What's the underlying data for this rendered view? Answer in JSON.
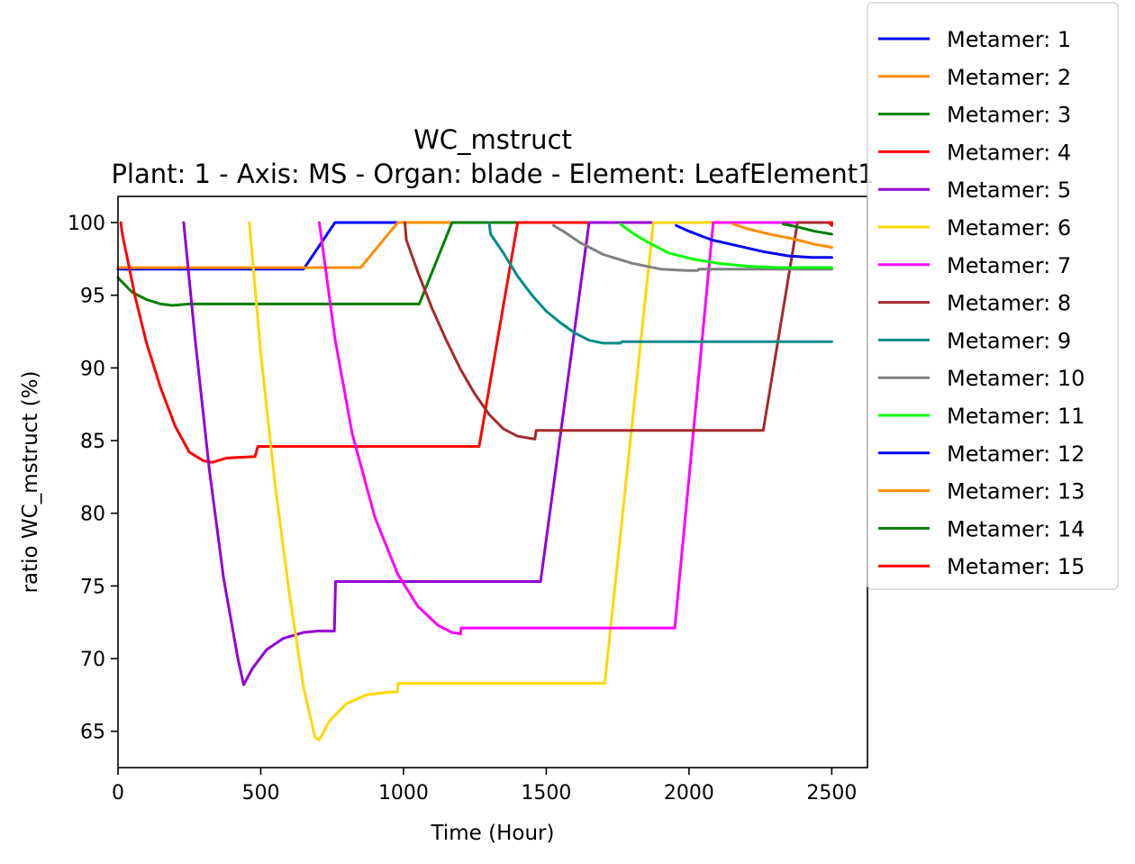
{
  "chart_data": {
    "type": "line",
    "title": "WC_mstruct",
    "subtitle": "Plant: 1 - Axis: MS - Organ: blade - Element: LeafElement1",
    "xlabel": "Time (Hour)",
    "ylabel": "ratio WC_mstruct (%)",
    "xlim": [
      0,
      2625
    ],
    "ylim": [
      62.5,
      101.8
    ],
    "xticks": [
      0,
      500,
      1000,
      1500,
      2000,
      2500
    ],
    "yticks": [
      65,
      70,
      75,
      80,
      85,
      90,
      95,
      100
    ],
    "grid": false,
    "legend_position": "outside-right",
    "series": [
      {
        "name": "Metamer: 1",
        "color": "#0000ff",
        "x": [
          0,
          650,
          760,
          2500
        ],
        "y": [
          96.8,
          96.8,
          100,
          100
        ]
      },
      {
        "name": "Metamer: 2",
        "color": "#ff8c00",
        "x": [
          0,
          850,
          980,
          2500
        ],
        "y": [
          96.9,
          96.9,
          100,
          100
        ]
      },
      {
        "name": "Metamer: 3",
        "color": "#008000",
        "x": [
          0,
          50,
          100,
          150,
          190,
          250,
          400,
          600,
          800,
          1000,
          1055,
          1170,
          2500
        ],
        "y": [
          96.2,
          95.2,
          94.7,
          94.4,
          94.3,
          94.4,
          94.4,
          94.4,
          94.4,
          94.4,
          94.4,
          100,
          100
        ]
      },
      {
        "name": "Metamer: 4",
        "color": "#ff0000",
        "x": [
          10,
          15,
          30,
          60,
          100,
          150,
          200,
          250,
          300,
          330,
          380,
          480,
          490,
          600,
          800,
          1000,
          1265,
          1400,
          2500
        ],
        "y": [
          100,
          99.2,
          97.8,
          94.9,
          91.7,
          88.6,
          86.0,
          84.2,
          83.6,
          83.5,
          83.8,
          83.9,
          84.6,
          84.6,
          84.6,
          84.6,
          84.6,
          100,
          100
        ]
      },
      {
        "name": "Metamer: 5",
        "color": "#9400d3",
        "x": [
          230,
          270,
          320,
          370,
          420,
          440,
          470,
          520,
          580,
          650,
          700,
          758,
          762,
          900,
          1100,
          1300,
          1480,
          1650,
          2500
        ],
        "y": [
          100,
          92,
          83,
          75.5,
          70.0,
          68.2,
          69.3,
          70.6,
          71.4,
          71.8,
          71.9,
          71.9,
          75.3,
          75.3,
          75.3,
          75.3,
          75.3,
          100,
          100
        ]
      },
      {
        "name": "Metamer: 6",
        "color": "#ffd700",
        "x": [
          460,
          500,
          550,
          600,
          650,
          690,
          705,
          740,
          800,
          870,
          950,
          978,
          982,
          1100,
          1300,
          1500,
          1705,
          1875,
          2500
        ],
        "y": [
          100,
          91,
          82,
          74.5,
          68.0,
          64.6,
          64.4,
          65.7,
          66.9,
          67.5,
          67.7,
          67.7,
          68.3,
          68.3,
          68.3,
          68.3,
          68.3,
          100,
          100
        ]
      },
      {
        "name": "Metamer: 7",
        "color": "#ff00ff",
        "x": [
          705,
          760,
          820,
          900,
          980,
          1050,
          1120,
          1170,
          1200,
          1202,
          1300,
          1500,
          1700,
          1950,
          2085,
          2500
        ],
        "y": [
          100,
          92,
          85.5,
          79.7,
          75.8,
          73.6,
          72.3,
          71.8,
          71.7,
          72.1,
          72.1,
          72.1,
          72.1,
          72.1,
          100,
          100
        ]
      },
      {
        "name": "Metamer: 8",
        "color": "#a52a2a",
        "x": [
          1005,
          1010,
          1050,
          1100,
          1150,
          1200,
          1250,
          1300,
          1350,
          1400,
          1460,
          1465,
          1600,
          1800,
          2000,
          2150,
          2260,
          2380,
          2500
        ],
        "y": [
          100,
          98.8,
          96.6,
          94.1,
          91.9,
          89.9,
          88.2,
          86.8,
          85.8,
          85.3,
          85.1,
          85.7,
          85.7,
          85.7,
          85.7,
          85.7,
          85.7,
          100,
          100
        ]
      },
      {
        "name": "Metamer: 9",
        "color": "#008b8b",
        "x": [
          1300,
          1305,
          1350,
          1400,
          1450,
          1500,
          1550,
          1600,
          1650,
          1700,
          1760,
          1765,
          1900,
          2100,
          2300,
          2500
        ],
        "y": [
          100,
          99.2,
          97.9,
          96.3,
          95.0,
          93.9,
          93.1,
          92.4,
          91.9,
          91.7,
          91.7,
          91.8,
          91.8,
          91.8,
          91.8,
          91.8
        ]
      },
      {
        "name": "Metamer: 10",
        "color": "#808080",
        "x": [
          1525,
          1560,
          1620,
          1700,
          1800,
          1900,
          1990,
          2030,
          2035,
          2200,
          2500
        ],
        "y": [
          99.8,
          99.4,
          98.6,
          97.8,
          97.2,
          96.8,
          96.7,
          96.7,
          96.8,
          96.8,
          96.8
        ]
      },
      {
        "name": "Metamer: 11",
        "color": "#00ff00",
        "x": [
          1760,
          1800,
          1860,
          1930,
          2010,
          2100,
          2200,
          2300,
          2500
        ],
        "y": [
          99.9,
          99.3,
          98.6,
          97.9,
          97.5,
          97.2,
          97.0,
          96.9,
          96.9
        ]
      },
      {
        "name": "Metamer: 12",
        "color": "#0000ff",
        "x": [
          1955,
          2000,
          2080,
          2170,
          2260,
          2350,
          2430,
          2500
        ],
        "y": [
          99.8,
          99.4,
          98.8,
          98.4,
          98.0,
          97.7,
          97.6,
          97.6
        ]
      },
      {
        "name": "Metamer: 13",
        "color": "#ff8c00",
        "x": [
          2155,
          2200,
          2280,
          2360,
          2440,
          2500
        ],
        "y": [
          99.9,
          99.6,
          99.2,
          98.9,
          98.5,
          98.3
        ]
      },
      {
        "name": "Metamer: 14",
        "color": "#008000",
        "x": [
          2330,
          2380,
          2440,
          2500
        ],
        "y": [
          99.9,
          99.7,
          99.4,
          99.2
        ]
      },
      {
        "name": "Metamer: 15",
        "color": "#ff0000",
        "x": [
          2490,
          2500,
          2500
        ],
        "y": [
          100,
          99.8,
          100
        ]
      }
    ]
  }
}
